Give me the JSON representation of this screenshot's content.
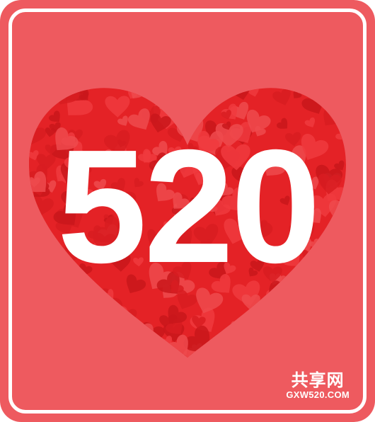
{
  "main": {
    "number_text": "520"
  },
  "watermark": {
    "brand_cn": "共享网",
    "url": "GXW520.COM"
  },
  "colors": {
    "background": "#ee5a5f",
    "heart": "#e42226",
    "heart_dark": "#c9161b",
    "frame": "#ffffff",
    "text": "#ffffff"
  }
}
